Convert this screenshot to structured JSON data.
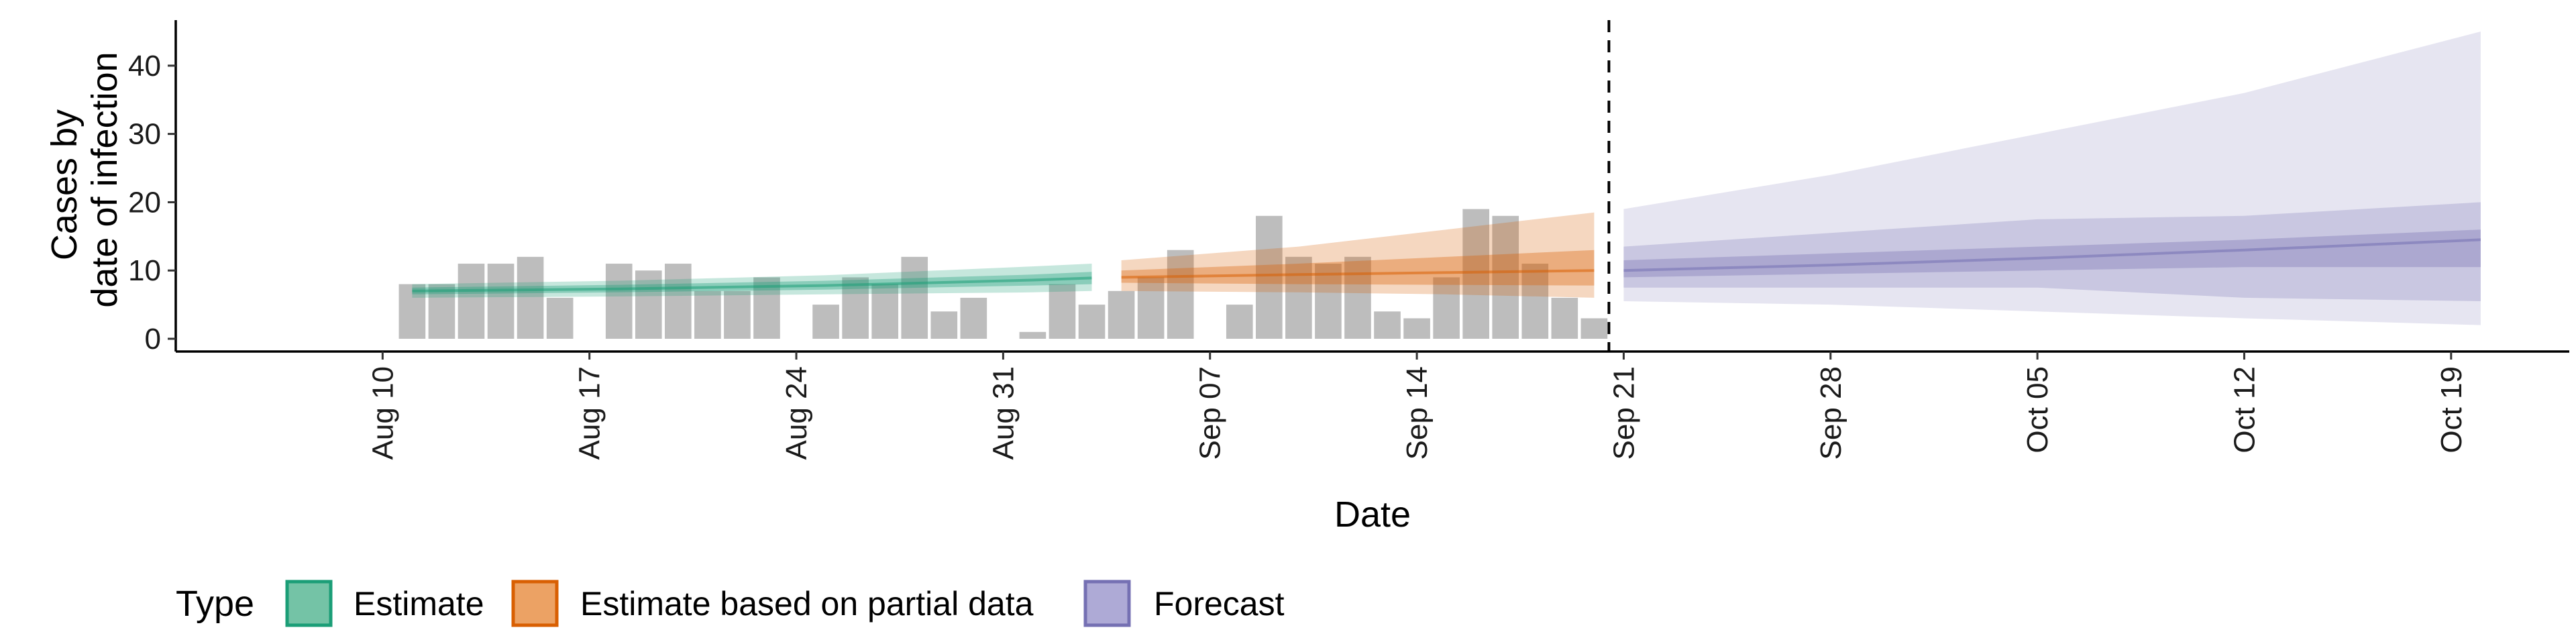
{
  "chart_data": {
    "type": "area",
    "xlabel": "Date",
    "ylabel_lines": [
      "Cases by",
      "date of infection"
    ],
    "ylim": [
      0,
      45
    ],
    "y_ticks": [
      0,
      10,
      20,
      30,
      40
    ],
    "x_range": [
      "2020-08-03",
      "2020-10-23"
    ],
    "x_ticks": [
      {
        "date": "2020-08-10",
        "label": "Aug 10"
      },
      {
        "date": "2020-08-17",
        "label": "Aug 17"
      },
      {
        "date": "2020-08-24",
        "label": "Aug 24"
      },
      {
        "date": "2020-08-31",
        "label": "Aug 31"
      },
      {
        "date": "2020-09-07",
        "label": "Sep 07"
      },
      {
        "date": "2020-09-14",
        "label": "Sep 14"
      },
      {
        "date": "2020-09-21",
        "label": "Sep 21"
      },
      {
        "date": "2020-09-28",
        "label": "Sep 28"
      },
      {
        "date": "2020-10-05",
        "label": "Oct 05"
      },
      {
        "date": "2020-10-12",
        "label": "Oct 12"
      },
      {
        "date": "2020-10-19",
        "label": "Oct 19"
      }
    ],
    "grid": false,
    "vline_date": "2020-09-20",
    "observed_cases": {
      "dates": [
        "2020-08-11",
        "2020-08-12",
        "2020-08-13",
        "2020-08-14",
        "2020-08-15",
        "2020-08-16",
        "2020-08-17",
        "2020-08-18",
        "2020-08-19",
        "2020-08-20",
        "2020-08-21",
        "2020-08-22",
        "2020-08-23",
        "2020-08-24",
        "2020-08-25",
        "2020-08-26",
        "2020-08-27",
        "2020-08-28",
        "2020-08-29",
        "2020-08-30",
        "2020-08-31",
        "2020-09-01",
        "2020-09-02",
        "2020-09-03",
        "2020-09-04",
        "2020-09-05",
        "2020-09-06",
        "2020-09-07",
        "2020-09-08",
        "2020-09-09",
        "2020-09-10",
        "2020-09-11",
        "2020-09-12",
        "2020-09-13",
        "2020-09-14",
        "2020-09-15",
        "2020-09-16",
        "2020-09-17",
        "2020-09-18",
        "2020-09-19",
        "2020-09-20"
      ],
      "values": [
        8,
        8,
        11,
        11,
        12,
        6,
        0,
        11,
        10,
        11,
        7,
        7,
        9,
        0,
        5,
        9,
        8,
        12,
        4,
        6,
        0,
        1,
        8,
        5,
        7,
        9,
        13,
        0,
        5,
        18,
        12,
        11,
        12,
        4,
        3,
        9,
        19,
        18,
        11,
        6,
        3
      ]
    },
    "series": [
      {
        "name": "Estimate",
        "color": "#1b9e77",
        "dates": [
          "2020-08-11",
          "2020-08-18",
          "2020-08-25",
          "2020-09-01",
          "2020-09-03"
        ],
        "median": [
          7.0,
          7.3,
          7.8,
          8.6,
          8.9
        ],
        "inner": [
          [
            6.5,
            7.5
          ],
          [
            6.8,
            7.9
          ],
          [
            7.2,
            8.5
          ],
          [
            7.8,
            9.4
          ],
          [
            8.0,
            9.8
          ]
        ],
        "outer": [
          [
            6.0,
            8.0
          ],
          [
            6.2,
            8.5
          ],
          [
            6.5,
            9.3
          ],
          [
            6.8,
            10.6
          ],
          [
            7.0,
            11.0
          ]
        ]
      },
      {
        "name": "Estimate based on partial data",
        "color": "#d95f02",
        "dates": [
          "2020-09-04",
          "2020-09-10",
          "2020-09-15",
          "2020-09-20"
        ],
        "median": [
          9.0,
          9.4,
          9.7,
          10.0
        ],
        "inner": [
          [
            8.2,
            10.0
          ],
          [
            8.0,
            11.0
          ],
          [
            7.9,
            12.0
          ],
          [
            7.8,
            13.0
          ]
        ],
        "outer": [
          [
            7.0,
            11.5
          ],
          [
            6.8,
            13.5
          ],
          [
            6.5,
            16.0
          ],
          [
            6.0,
            18.5
          ]
        ]
      },
      {
        "name": "Forecast",
        "color": "#7570b3",
        "dates": [
          "2020-09-21",
          "2020-09-28",
          "2020-10-05",
          "2020-10-12",
          "2020-10-20"
        ],
        "median": [
          10.0,
          10.8,
          11.8,
          13.0,
          14.5
        ],
        "inner": [
          [
            9.0,
            11.5
          ],
          [
            9.5,
            12.5
          ],
          [
            10.0,
            13.5
          ],
          [
            10.5,
            14.5
          ],
          [
            10.5,
            16.0
          ]
        ],
        "outer": [
          [
            7.5,
            13.5
          ],
          [
            7.5,
            15.5
          ],
          [
            7.5,
            17.5
          ],
          [
            6.0,
            18.0
          ],
          [
            5.5,
            20.0
          ]
        ],
        "outermost": [
          [
            5.5,
            19.0
          ],
          [
            5.0,
            24.0
          ],
          [
            4.0,
            30.0
          ],
          [
            3.0,
            36.0
          ],
          [
            2.0,
            45.0
          ]
        ]
      }
    ],
    "legend": {
      "title": "Type",
      "position": "bottom-left",
      "entries": [
        {
          "label": "Estimate",
          "fill": "#74c3a6",
          "stroke": "#1b9e77"
        },
        {
          "label": "Estimate based on partial data",
          "fill": "#eca264",
          "stroke": "#d95f02"
        },
        {
          "label": "Forecast",
          "fill": "#aeaad6",
          "stroke": "#7570b3"
        }
      ]
    }
  }
}
